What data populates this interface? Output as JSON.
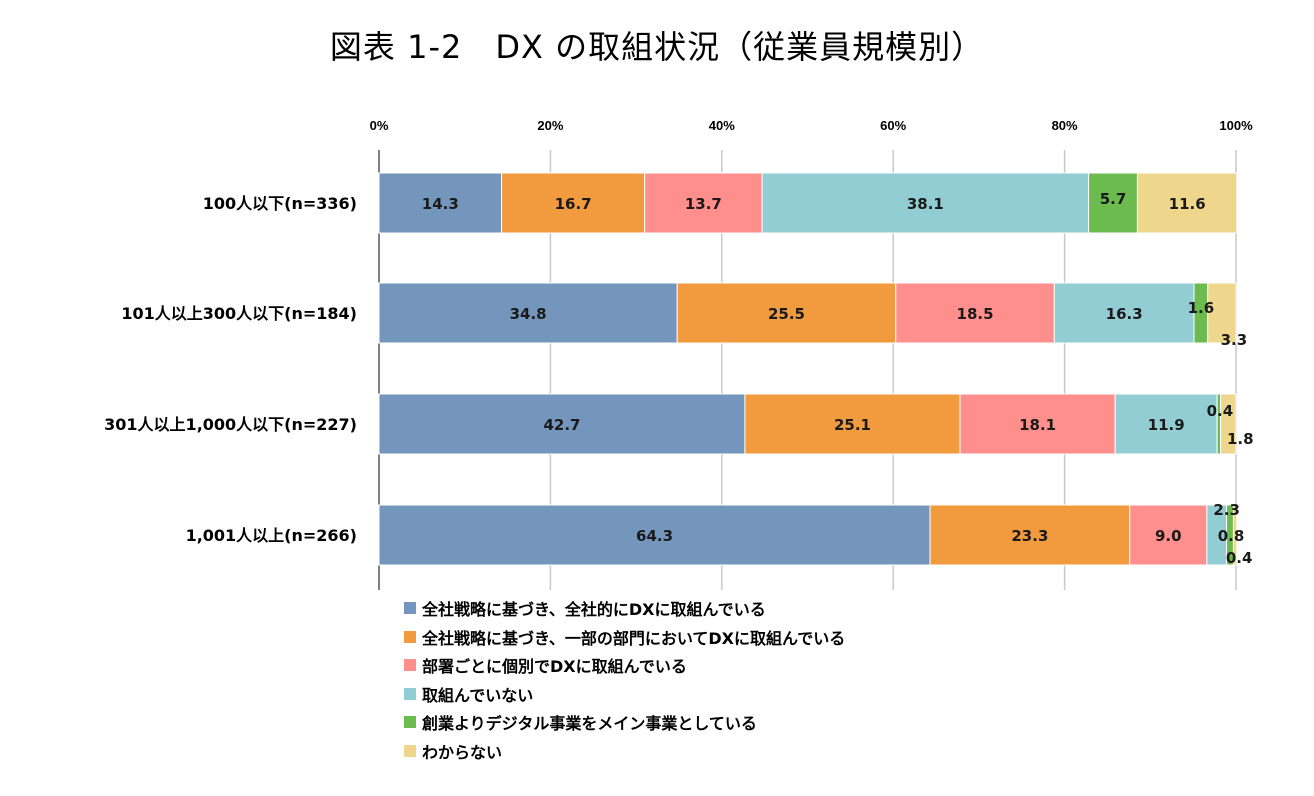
{
  "chart_data": {
    "type": "bar",
    "orientation": "horizontal",
    "stacked": true,
    "title": "図表 1-2　DX の取組状況（従業員規模別）",
    "xlim": [
      0,
      100
    ],
    "x_ticks": [
      "0%",
      "20%",
      "40%",
      "60%",
      "80%",
      "100%"
    ],
    "x_tick_position": "top",
    "grid": true,
    "legend_position": "bottom",
    "categories": [
      "100人以下(n=336)",
      "101人以上300人以下(n=184)",
      "301人以上1,000人以下(n=227)",
      "1,001人以上(n=266)"
    ],
    "series": [
      {
        "name": "全社戦略に基づき、全社的にDXに取組んでいる",
        "color": "#7596BC",
        "values": [
          14.3,
          34.8,
          42.7,
          64.3
        ]
      },
      {
        "name": "全社戦略に基づき、一部の部門においてDXに取組んでいる",
        "color": "#F19A3E",
        "values": [
          16.7,
          25.5,
          25.1,
          23.3
        ]
      },
      {
        "name": "部署ごとに個別でDXに取組んでいる",
        "color": "#FF8F8C",
        "values": [
          13.7,
          18.5,
          18.1,
          9.0
        ]
      },
      {
        "name": "取組んでいない",
        "color": "#92CDD4",
        "values": [
          38.1,
          16.3,
          11.9,
          2.3
        ]
      },
      {
        "name": "創業よりデジタル事業をメイン事業としている",
        "color": "#6CBB4F",
        "values": [
          5.7,
          1.6,
          0.4,
          0.8
        ]
      },
      {
        "name": "わからない",
        "color": "#EFD68D",
        "values": [
          11.6,
          3.3,
          1.8,
          0.4
        ]
      }
    ]
  }
}
